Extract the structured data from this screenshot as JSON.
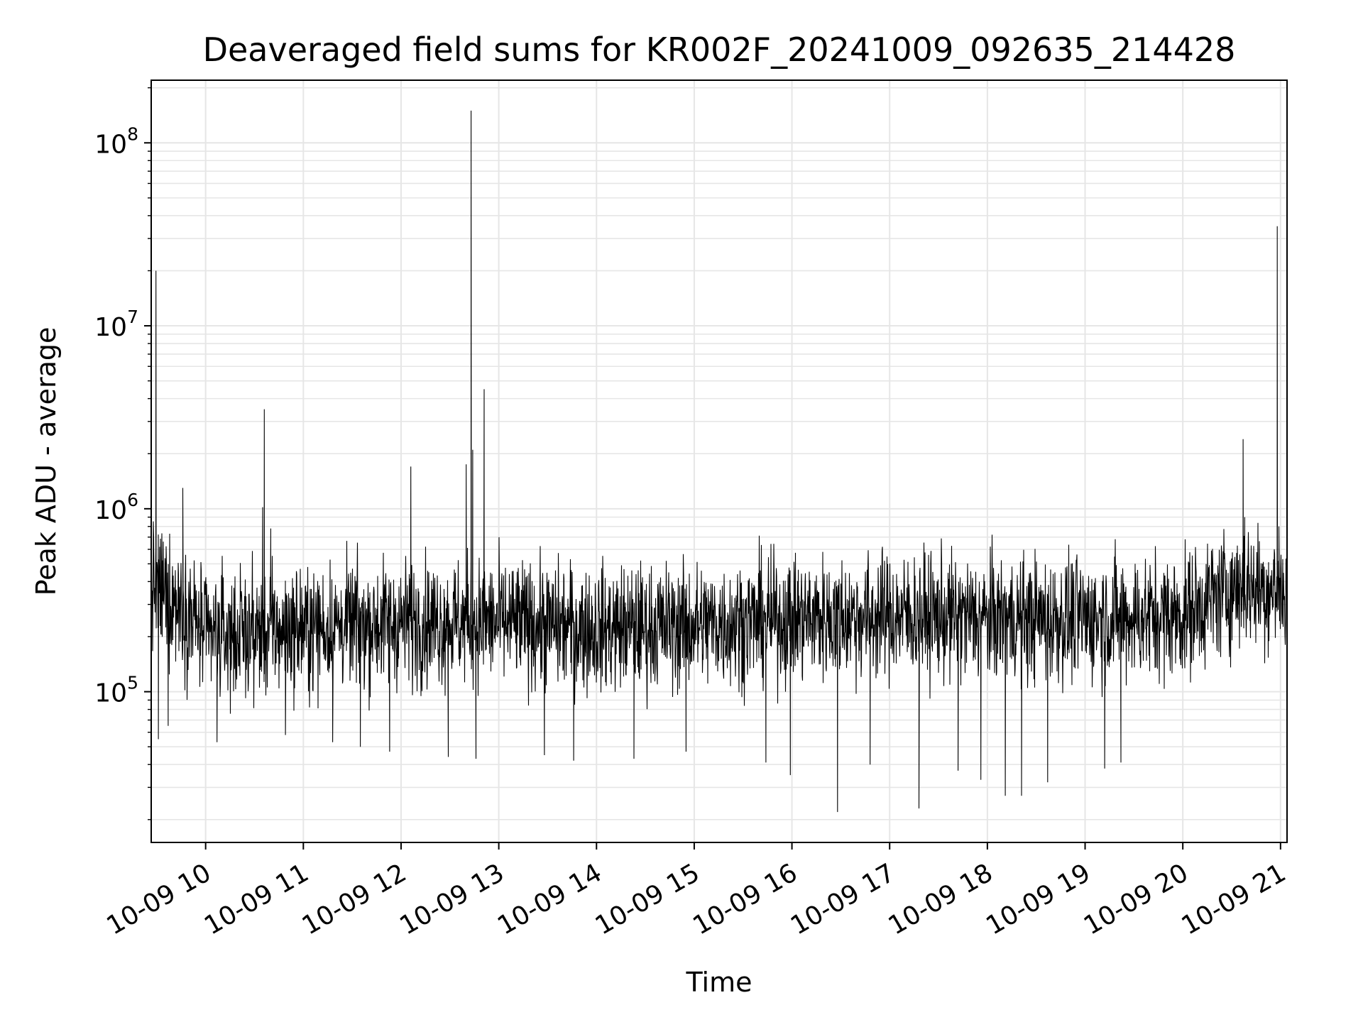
{
  "chart_data": {
    "type": "line",
    "title": "Deaveraged field sums for KR002F_20241009_092635_214428",
    "xlabel": "Time",
    "ylabel": "Peak ADU - average",
    "yscale": "log",
    "ylim": [
      15000,
      220000000
    ],
    "xlim": [
      "2024-10-09 09:26:35",
      "2024-10-09 21:04:00"
    ],
    "grid": true,
    "line_color": "#000000",
    "grid_color": "#e6e6e6",
    "x_ticks": [
      {
        "t": "2024-10-09 10:00",
        "label": "10-09 10"
      },
      {
        "t": "2024-10-09 11:00",
        "label": "10-09 11"
      },
      {
        "t": "2024-10-09 12:00",
        "label": "10-09 12"
      },
      {
        "t": "2024-10-09 13:00",
        "label": "10-09 13"
      },
      {
        "t": "2024-10-09 14:00",
        "label": "10-09 14"
      },
      {
        "t": "2024-10-09 15:00",
        "label": "10-09 15"
      },
      {
        "t": "2024-10-09 16:00",
        "label": "10-09 16"
      },
      {
        "t": "2024-10-09 17:00",
        "label": "10-09 17"
      },
      {
        "t": "2024-10-09 18:00",
        "label": "10-09 18"
      },
      {
        "t": "2024-10-09 19:00",
        "label": "10-09 19"
      },
      {
        "t": "2024-10-09 20:00",
        "label": "10-09 20"
      },
      {
        "t": "2024-10-09 21:00",
        "label": "10-09 21"
      }
    ],
    "y_ticks": [
      {
        "value": 100000,
        "base": "10",
        "exp": "5"
      },
      {
        "value": 1000000,
        "base": "10",
        "exp": "6"
      },
      {
        "value": 10000000,
        "base": "10",
        "exp": "7"
      },
      {
        "value": 100000000,
        "base": "10",
        "exp": "8"
      }
    ],
    "series": [
      {
        "baseline": [
          [
            "2024-10-09 09:26:35",
            380000
          ],
          [
            "2024-10-09 09:45:00",
            300000
          ],
          [
            "2024-10-09 10:00:00",
            200000
          ],
          [
            "2024-10-09 11:00:00",
            220000
          ],
          [
            "2024-10-09 12:00:00",
            240000
          ],
          [
            "2024-10-09 13:00:00",
            240000
          ],
          [
            "2024-10-09 14:00:00",
            220000
          ],
          [
            "2024-10-09 15:00:00",
            230000
          ],
          [
            "2024-10-09 16:00:00",
            250000
          ],
          [
            "2024-10-09 17:00:00",
            260000
          ],
          [
            "2024-10-09 18:00:00",
            250000
          ],
          [
            "2024-10-09 19:00:00",
            250000
          ],
          [
            "2024-10-09 20:00:00",
            260000
          ],
          [
            "2024-10-09 20:35:00",
            380000
          ],
          [
            "2024-10-09 21:04:00",
            350000
          ]
        ],
        "spikes": [
          [
            "2024-10-09 09:29:30",
            20000000
          ],
          [
            "2024-10-09 09:46:00",
            1300000
          ],
          [
            "2024-10-09 10:36:00",
            3500000
          ],
          [
            "2024-10-09 10:35:00",
            1020000
          ],
          [
            "2024-10-09 10:40:00",
            780000
          ],
          [
            "2024-10-09 12:06:00",
            1700000
          ],
          [
            "2024-10-09 12:40:00",
            1750000
          ],
          [
            "2024-10-09 12:43:00",
            150000000
          ],
          [
            "2024-10-09 12:44:00",
            2100000
          ],
          [
            "2024-10-09 12:51:00",
            4500000
          ],
          [
            "2024-10-09 20:37:00",
            2400000
          ],
          [
            "2024-10-09 20:38:00",
            900000
          ],
          [
            "2024-10-09 20:58:00",
            35000000
          ],
          [
            "2024-10-09 20:59:00",
            800000
          ]
        ],
        "dips": [
          [
            "2024-10-09 09:31:00",
            55000
          ],
          [
            "2024-10-09 09:37:00",
            65000
          ],
          [
            "2024-10-09 10:07:00",
            53000
          ],
          [
            "2024-10-09 10:49:00",
            58000
          ],
          [
            "2024-10-09 11:18:00",
            53000
          ],
          [
            "2024-10-09 11:35:00",
            50000
          ],
          [
            "2024-10-09 11:53:00",
            47000
          ],
          [
            "2024-10-09 12:29:00",
            44000
          ],
          [
            "2024-10-09 12:46:00",
            43000
          ],
          [
            "2024-10-09 13:28:00",
            45000
          ],
          [
            "2024-10-09 13:46:00",
            42000
          ],
          [
            "2024-10-09 14:23:00",
            43000
          ],
          [
            "2024-10-09 14:55:00",
            47000
          ],
          [
            "2024-10-09 15:44:00",
            41000
          ],
          [
            "2024-10-09 15:59:00",
            35000
          ],
          [
            "2024-10-09 16:28:00",
            22000
          ],
          [
            "2024-10-09 16:48:00",
            40000
          ],
          [
            "2024-10-09 17:18:00",
            23000
          ],
          [
            "2024-10-09 17:42:00",
            37000
          ],
          [
            "2024-10-09 17:56:00",
            33000
          ],
          [
            "2024-10-09 18:11:00",
            27000
          ],
          [
            "2024-10-09 18:21:00",
            27000
          ],
          [
            "2024-10-09 18:37:00",
            32000
          ],
          [
            "2024-10-09 19:12:00",
            38000
          ],
          [
            "2024-10-09 19:22:00",
            41000
          ]
        ]
      }
    ]
  }
}
